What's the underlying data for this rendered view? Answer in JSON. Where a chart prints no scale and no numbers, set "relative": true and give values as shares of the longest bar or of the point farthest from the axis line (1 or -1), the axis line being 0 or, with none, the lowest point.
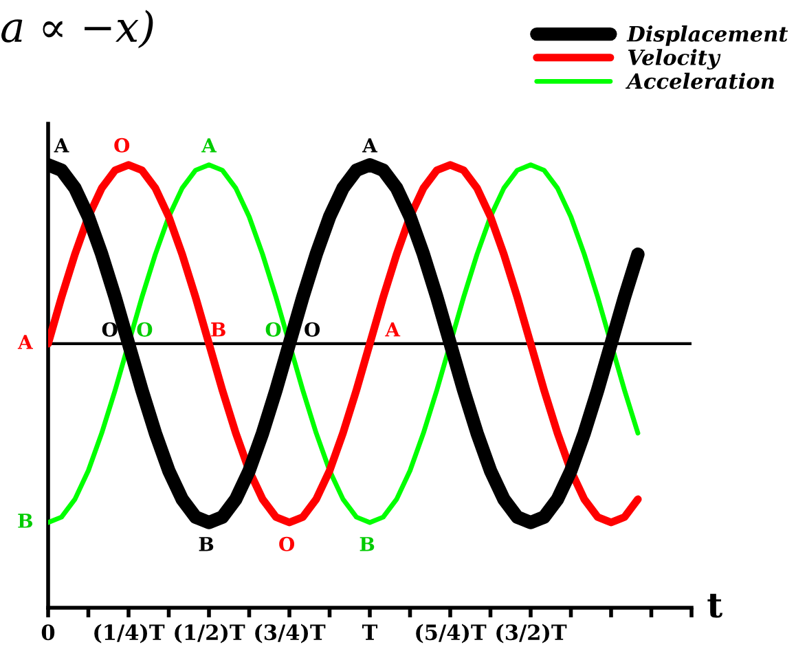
{
  "chart_data": {
    "type": "line",
    "title": "a ∝ −x)",
    "xlabel": "t",
    "relative": true,
    "legend": "top right",
    "tick_labels": "x",
    "categories": [
      "0",
      null,
      null,
      null,
      null,
      null,
      "(1/4)T",
      null,
      null,
      null,
      null,
      null,
      "(1/2)T",
      null,
      null,
      null,
      null,
      null,
      "(3/4)T",
      null,
      null,
      null,
      null,
      null,
      "T",
      null,
      null,
      null,
      null,
      null,
      "(5/4)T",
      null,
      null,
      null,
      null,
      null,
      "(3/2)T",
      null,
      null,
      null,
      null,
      null,
      null,
      null,
      null
    ],
    "series": [
      {
        "name": "Displacement",
        "color": "#000000",
        "values": [
          1,
          0.97,
          0.87,
          0.71,
          0.5,
          0.26,
          0,
          -0.26,
          -0.5,
          -0.71,
          -0.87,
          -0.97,
          -1,
          -0.97,
          -0.87,
          -0.71,
          -0.5,
          -0.26,
          0,
          0.26,
          0.5,
          0.71,
          0.87,
          0.97,
          1,
          0.97,
          0.87,
          0.71,
          0.5,
          0.26,
          0,
          -0.26,
          -0.5,
          -0.71,
          -0.87,
          -0.97,
          -1,
          -0.97,
          -0.87,
          -0.71,
          -0.5,
          -0.26,
          0,
          0.26,
          0.5
        ]
      },
      {
        "name": "Velocity",
        "color": "#ff0000",
        "values": [
          0,
          0.26,
          0.5,
          0.71,
          0.87,
          0.97,
          1,
          0.97,
          0.87,
          0.71,
          0.5,
          0.26,
          0,
          -0.26,
          -0.5,
          -0.71,
          -0.87,
          -0.97,
          -1,
          -0.97,
          -0.87,
          -0.71,
          -0.5,
          -0.26,
          0,
          0.26,
          0.5,
          0.71,
          0.87,
          0.97,
          1,
          0.97,
          0.87,
          0.71,
          0.5,
          0.26,
          0,
          -0.26,
          -0.5,
          -0.71,
          -0.87,
          -0.97,
          -1,
          -0.97,
          -0.87
        ]
      },
      {
        "name": "Acceleration",
        "color": "#00ff00",
        "values": [
          -1,
          -0.97,
          -0.87,
          -0.71,
          -0.5,
          -0.26,
          0,
          0.26,
          0.5,
          0.71,
          0.87,
          0.97,
          1,
          0.97,
          0.87,
          0.71,
          0.5,
          0.26,
          0,
          -0.26,
          -0.5,
          -0.71,
          -0.87,
          -0.97,
          -1,
          -0.97,
          -0.87,
          -0.71,
          -0.5,
          -0.26,
          0,
          0.26,
          0.5,
          0.71,
          0.87,
          0.97,
          1,
          0.97,
          0.87,
          0.71,
          0.5,
          0.26,
          0,
          -0.26,
          -0.5
        ]
      }
    ],
    "ref_lines": [
      {
        "axis": "y",
        "value": 0
      }
    ],
    "annotations": [
      "A",
      "O",
      "A",
      "A",
      "O",
      "O",
      "B",
      "O",
      "O",
      "A",
      "B",
      "O",
      "B",
      "A",
      "B"
    ]
  }
}
